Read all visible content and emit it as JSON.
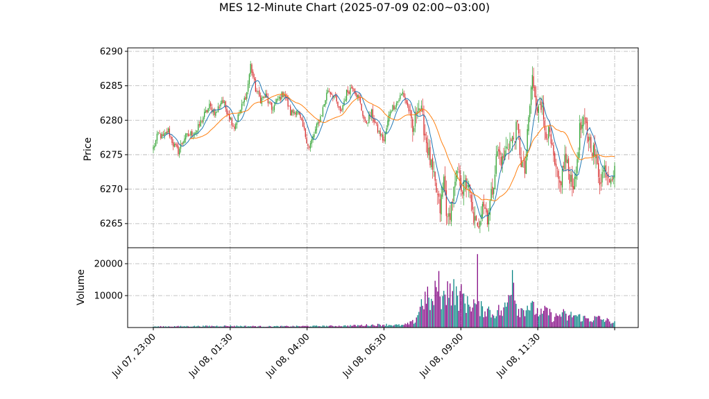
{
  "chart_data": {
    "type": "candlestick",
    "title": "MES 12-Minute Chart (2025-07-09 02:00~03:00)",
    "price_panel": {
      "ylabel": "Price",
      "ylim": [
        6261.5,
        6290.5
      ],
      "yticks": [
        6265,
        6270,
        6275,
        6280,
        6285,
        6290
      ],
      "grid": true
    },
    "volume_panel": {
      "ylabel": "Volume",
      "ylim": [
        0,
        25000
      ],
      "yticks": [
        10000,
        20000
      ],
      "grid": true
    },
    "x_ticks": [
      "Jul 07, 23:00",
      "Jul 08, 01:30",
      "Jul 08, 04:00",
      "Jul 08, 06:30",
      "Jul 08, 09:00",
      "Jul 08, 11:30",
      ""
    ],
    "up_color": "#2ca02c",
    "down_color": "#d62728",
    "volume_up_color": "#008080",
    "volume_down_color": "#800080",
    "ma_short_color": "#1f77b4",
    "ma_long_color": "#ff7f0e",
    "anchors": [
      [
        0,
        6276.0
      ],
      [
        4,
        6278.0
      ],
      [
        8,
        6277.5
      ],
      [
        12,
        6278.5
      ],
      [
        16,
        6276.5
      ],
      [
        20,
        6275.5
      ],
      [
        25,
        6277.5
      ],
      [
        30,
        6278.0
      ],
      [
        35,
        6278.5
      ],
      [
        40,
        6280.5
      ],
      [
        45,
        6282.0
      ],
      [
        50,
        6281.0
      ],
      [
        55,
        6283.0
      ],
      [
        60,
        6281.0
      ],
      [
        65,
        6279.0
      ],
      [
        70,
        6281.5
      ],
      [
        75,
        6284.0
      ],
      [
        78,
        6288.0
      ],
      [
        82,
        6284.5
      ],
      [
        86,
        6283.0
      ],
      [
        90,
        6283.5
      ],
      [
        95,
        6281.5
      ],
      [
        100,
        6283.0
      ],
      [
        105,
        6284.0
      ],
      [
        110,
        6281.0
      ],
      [
        115,
        6281.5
      ],
      [
        120,
        6279.0
      ],
      [
        125,
        6276.0
      ],
      [
        130,
        6278.5
      ],
      [
        135,
        6281.0
      ],
      [
        140,
        6284.5
      ],
      [
        145,
        6283.5
      ],
      [
        150,
        6281.0
      ],
      [
        155,
        6284.0
      ],
      [
        160,
        6285.0
      ],
      [
        165,
        6283.0
      ],
      [
        170,
        6279.5
      ],
      [
        175,
        6281.0
      ],
      [
        180,
        6278.5
      ],
      [
        185,
        6277.0
      ],
      [
        190,
        6281.5
      ],
      [
        195,
        6282.5
      ],
      [
        200,
        6284.0
      ],
      [
        205,
        6281.5
      ],
      [
        208,
        6278.0
      ],
      [
        212,
        6282.5
      ],
      [
        215,
        6281.0
      ],
      [
        218,
        6278.0
      ],
      [
        222,
        6274.0
      ],
      [
        226,
        6270.5
      ],
      [
        230,
        6267.0
      ],
      [
        233,
        6271.5
      ],
      [
        236,
        6265.0
      ],
      [
        240,
        6268.5
      ],
      [
        244,
        6272.5
      ],
      [
        248,
        6270.0
      ],
      [
        252,
        6271.0
      ],
      [
        256,
        6266.5
      ],
      [
        260,
        6264.0
      ],
      [
        264,
        6268.5
      ],
      [
        268,
        6266.0
      ],
      [
        272,
        6270.0
      ],
      [
        276,
        6275.5
      ],
      [
        280,
        6274.0
      ],
      [
        284,
        6276.5
      ],
      [
        288,
        6277.0
      ],
      [
        292,
        6279.0
      ],
      [
        295,
        6274.0
      ],
      [
        298,
        6272.5
      ],
      [
        301,
        6280.0
      ],
      [
        304,
        6286.5
      ],
      [
        307,
        6281.0
      ],
      [
        310,
        6283.5
      ],
      [
        314,
        6279.0
      ],
      [
        318,
        6277.5
      ],
      [
        322,
        6273.0
      ],
      [
        326,
        6270.5
      ],
      [
        330,
        6274.5
      ],
      [
        334,
        6272.0
      ],
      [
        338,
        6270.5
      ],
      [
        342,
        6278.5
      ],
      [
        346,
        6279.5
      ],
      [
        350,
        6277.0
      ],
      [
        354,
        6275.0
      ],
      [
        358,
        6271.5
      ],
      [
        362,
        6273.0
      ],
      [
        366,
        6272.0
      ],
      [
        370,
        6272.5
      ]
    ],
    "volume_anchors": [
      [
        0,
        300
      ],
      [
        60,
        500
      ],
      [
        90,
        350
      ],
      [
        150,
        500
      ],
      [
        185,
        900
      ],
      [
        200,
        700
      ],
      [
        205,
        1200
      ],
      [
        210,
        2000
      ],
      [
        213,
        5500
      ],
      [
        216,
        8500
      ],
      [
        220,
        9000
      ],
      [
        224,
        7000
      ],
      [
        228,
        14000
      ],
      [
        232,
        8500
      ],
      [
        236,
        11000
      ],
      [
        240,
        12000
      ],
      [
        244,
        9000
      ],
      [
        248,
        10000
      ],
      [
        252,
        7000
      ],
      [
        256,
        8000
      ],
      [
        260,
        6500
      ],
      [
        264,
        5500
      ],
      [
        268,
        6000
      ],
      [
        272,
        4000
      ],
      [
        276,
        5500
      ],
      [
        280,
        4500
      ],
      [
        284,
        7500
      ],
      [
        288,
        16500
      ],
      [
        292,
        6000
      ],
      [
        296,
        5500
      ],
      [
        300,
        7000
      ],
      [
        304,
        6000
      ],
      [
        308,
        5000
      ],
      [
        312,
        4000
      ],
      [
        316,
        5500
      ],
      [
        320,
        3000
      ],
      [
        324,
        3500
      ],
      [
        328,
        4500
      ],
      [
        332,
        3000
      ],
      [
        336,
        4000
      ],
      [
        340,
        3500
      ],
      [
        344,
        3000
      ],
      [
        348,
        2800
      ],
      [
        352,
        2500
      ],
      [
        356,
        3000
      ],
      [
        360,
        2500
      ],
      [
        366,
        2000
      ],
      [
        370,
        1500
      ]
    ],
    "bar_count": 371,
    "ma_short_period": 9,
    "ma_long_period": 30
  }
}
